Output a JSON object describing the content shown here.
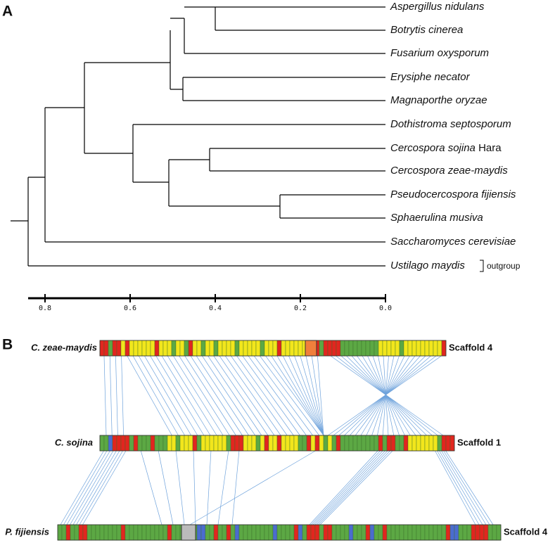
{
  "panel_a": {
    "label": "A",
    "taxa": [
      "Aspergillus nidulans",
      "Botrytis cinerea",
      "Fusarium oxysporum",
      "Erysiphe necator",
      "Magnaporthe oryzae",
      "Dothistroma septosporum",
      "Cercospora sojina",
      "Cercospora zeae-maydis",
      "Pseudocercospora fijiensis",
      "Sphaerulina musiva",
      "Saccharomyces cerevisiae",
      "Ustilago maydis"
    ],
    "authority": "Hara",
    "outgroup_label": "outgroup",
    "scale_ticks": [
      0.8,
      0.6,
      0.4,
      0.2,
      {
        "value": 0,
        "label": "0.0"
      }
    ]
  },
  "panel_b": {
    "label": "B",
    "tracks": [
      {
        "species": "C. zeae-maydis",
        "scaffold": "Scaffold 4"
      },
      {
        "species": "C. sojina",
        "scaffold": "Scaffold 1"
      },
      {
        "species": "P. fijiensis",
        "scaffold": "Scaffold 4"
      }
    ]
  }
}
